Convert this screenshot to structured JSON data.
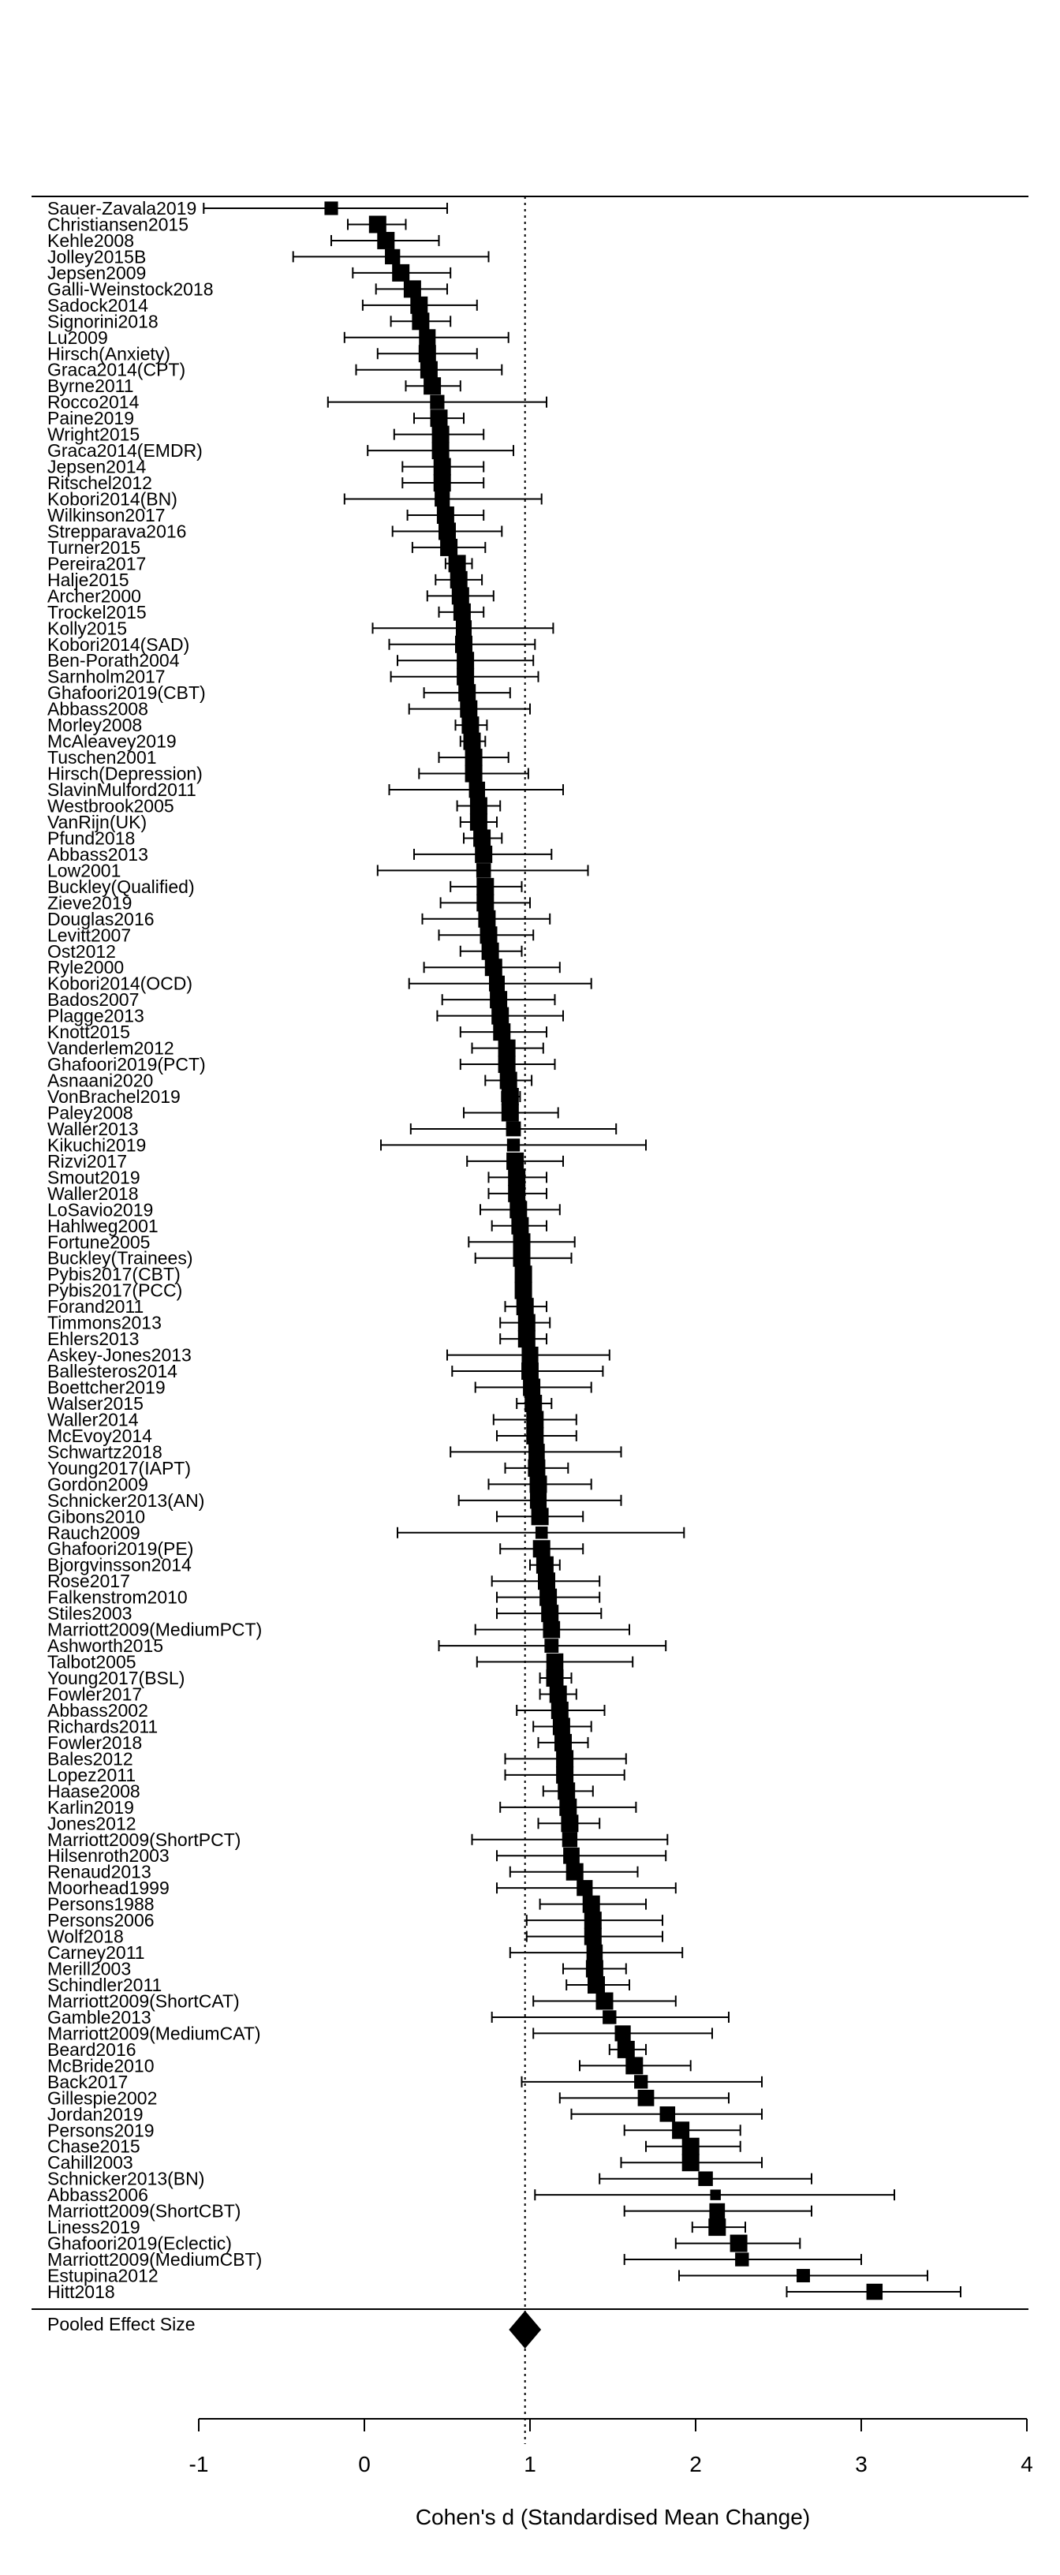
{
  "chart_data": {
    "type": "forest",
    "xlabel": "Cohen's d (Standardised Mean Change)",
    "xlim": [
      -1,
      4
    ],
    "xticks": [
      -1,
      0,
      1,
      2,
      3,
      4
    ],
    "reference_line": 0.97,
    "pooled": {
      "label": "Pooled Effect Size",
      "estimate": 0.97,
      "lower": 0.93,
      "upper": 1.01
    },
    "studies": [
      {
        "label": "Sauer-Zavala2019",
        "d": -0.2,
        "lo": -0.97,
        "hi": 0.5
      },
      {
        "label": "Christiansen2015",
        "d": 0.08,
        "lo": -0.1,
        "hi": 0.25
      },
      {
        "label": "Kehle2008",
        "d": 0.13,
        "lo": -0.2,
        "hi": 0.45
      },
      {
        "label": "Jolley2015B",
        "d": 0.17,
        "lo": -0.43,
        "hi": 0.75
      },
      {
        "label": "Jepsen2009",
        "d": 0.22,
        "lo": -0.07,
        "hi": 0.52
      },
      {
        "label": "Galli-Weinstock2018",
        "d": 0.29,
        "lo": 0.07,
        "hi": 0.5
      },
      {
        "label": "Sadock2014",
        "d": 0.33,
        "lo": -0.01,
        "hi": 0.68
      },
      {
        "label": "Signorini2018",
        "d": 0.34,
        "lo": 0.16,
        "hi": 0.52
      },
      {
        "label": "Lu2009",
        "d": 0.38,
        "lo": -0.12,
        "hi": 0.87
      },
      {
        "label": "Hirsch(Anxiety)",
        "d": 0.38,
        "lo": 0.08,
        "hi": 0.68
      },
      {
        "label": "Graca2014(CPT)",
        "d": 0.39,
        "lo": -0.05,
        "hi": 0.83
      },
      {
        "label": "Byrne2011",
        "d": 0.41,
        "lo": 0.25,
        "hi": 0.58
      },
      {
        "label": "Rocco2014",
        "d": 0.44,
        "lo": -0.22,
        "hi": 1.1
      },
      {
        "label": "Paine2019",
        "d": 0.45,
        "lo": 0.3,
        "hi": 0.6
      },
      {
        "label": "Wright2015",
        "d": 0.46,
        "lo": 0.18,
        "hi": 0.72
      },
      {
        "label": "Graca2014(EMDR)",
        "d": 0.46,
        "lo": 0.02,
        "hi": 0.9
      },
      {
        "label": "Jepsen2014",
        "d": 0.47,
        "lo": 0.23,
        "hi": 0.72
      },
      {
        "label": "Ritschel2012",
        "d": 0.47,
        "lo": 0.23,
        "hi": 0.72
      },
      {
        "label": "Kobori2014(BN)",
        "d": 0.47,
        "lo": -0.12,
        "hi": 1.07
      },
      {
        "label": "Wilkinson2017",
        "d": 0.49,
        "lo": 0.26,
        "hi": 0.72
      },
      {
        "label": "Strepparava2016",
        "d": 0.5,
        "lo": 0.17,
        "hi": 0.83
      },
      {
        "label": "Turner2015",
        "d": 0.51,
        "lo": 0.29,
        "hi": 0.73
      },
      {
        "label": "Pereira2017",
        "d": 0.56,
        "lo": 0.49,
        "hi": 0.65
      },
      {
        "label": "Halje2015",
        "d": 0.57,
        "lo": 0.43,
        "hi": 0.71
      },
      {
        "label": "Archer2000",
        "d": 0.58,
        "lo": 0.38,
        "hi": 0.78
      },
      {
        "label": "Trockel2015",
        "d": 0.59,
        "lo": 0.45,
        "hi": 0.72
      },
      {
        "label": "Kolly2015",
        "d": 0.6,
        "lo": 0.05,
        "hi": 1.14
      },
      {
        "label": "Kobori2014(SAD)",
        "d": 0.6,
        "lo": 0.15,
        "hi": 1.03
      },
      {
        "label": "Ben-Porath2004",
        "d": 0.61,
        "lo": 0.2,
        "hi": 1.02
      },
      {
        "label": "Sarnholm2017",
        "d": 0.61,
        "lo": 0.16,
        "hi": 1.05
      },
      {
        "label": "Ghafoori2019(CBT)",
        "d": 0.62,
        "lo": 0.36,
        "hi": 0.88
      },
      {
        "label": "Abbass2008",
        "d": 0.63,
        "lo": 0.27,
        "hi": 1.0
      },
      {
        "label": "Morley2008",
        "d": 0.64,
        "lo": 0.55,
        "hi": 0.74
      },
      {
        "label": "McAleavey2019",
        "d": 0.65,
        "lo": 0.58,
        "hi": 0.73
      },
      {
        "label": "Tuschen2001",
        "d": 0.66,
        "lo": 0.45,
        "hi": 0.87
      },
      {
        "label": "Hirsch(Depression)",
        "d": 0.66,
        "lo": 0.33,
        "hi": 0.99
      },
      {
        "label": "SlavinMulford2011",
        "d": 0.68,
        "lo": 0.15,
        "hi": 1.2
      },
      {
        "label": "Westbrook2005",
        "d": 0.69,
        "lo": 0.56,
        "hi": 0.82
      },
      {
        "label": "VanRijn(UK)",
        "d": 0.69,
        "lo": 0.58,
        "hi": 0.8
      },
      {
        "label": "Pfund2018",
        "d": 0.71,
        "lo": 0.6,
        "hi": 0.83
      },
      {
        "label": "Abbass2013",
        "d": 0.72,
        "lo": 0.3,
        "hi": 1.13
      },
      {
        "label": "Low2001",
        "d": 0.72,
        "lo": 0.08,
        "hi": 1.35
      },
      {
        "label": "Buckley(Qualified)",
        "d": 0.73,
        "lo": 0.52,
        "hi": 0.95
      },
      {
        "label": "Zieve2019",
        "d": 0.73,
        "lo": 0.46,
        "hi": 1.0
      },
      {
        "label": "Douglas2016",
        "d": 0.74,
        "lo": 0.35,
        "hi": 1.12
      },
      {
        "label": "Levitt2007",
        "d": 0.75,
        "lo": 0.45,
        "hi": 1.02
      },
      {
        "label": "Ost2012",
        "d": 0.76,
        "lo": 0.58,
        "hi": 0.95
      },
      {
        "label": "Ryle2000",
        "d": 0.78,
        "lo": 0.36,
        "hi": 1.18
      },
      {
        "label": "Kobori2014(OCD)",
        "d": 0.8,
        "lo": 0.27,
        "hi": 1.37
      },
      {
        "label": "Bados2007",
        "d": 0.81,
        "lo": 0.47,
        "hi": 1.15
      },
      {
        "label": "Plagge2013",
        "d": 0.82,
        "lo": 0.44,
        "hi": 1.2
      },
      {
        "label": "Knott2015",
        "d": 0.83,
        "lo": 0.58,
        "hi": 1.1
      },
      {
        "label": "Vanderlem2012",
        "d": 0.86,
        "lo": 0.65,
        "hi": 1.08
      },
      {
        "label": "Ghafoori2019(PCT)",
        "d": 0.86,
        "lo": 0.58,
        "hi": 1.15
      },
      {
        "label": "Asnaani2020",
        "d": 0.87,
        "lo": 0.73,
        "hi": 1.01
      },
      {
        "label": "VonBrachel2019",
        "d": 0.88,
        "lo": 0.83,
        "hi": 0.94
      },
      {
        "label": "Paley2008",
        "d": 0.88,
        "lo": 0.6,
        "hi": 1.17
      },
      {
        "label": "Waller2013",
        "d": 0.9,
        "lo": 0.28,
        "hi": 1.52
      },
      {
        "label": "Kikuchi2019",
        "d": 0.9,
        "lo": 0.1,
        "hi": 1.7
      },
      {
        "label": "Rizvi2017",
        "d": 0.91,
        "lo": 0.62,
        "hi": 1.2
      },
      {
        "label": "Smout2019",
        "d": 0.92,
        "lo": 0.75,
        "hi": 1.1
      },
      {
        "label": "Waller2018",
        "d": 0.92,
        "lo": 0.75,
        "hi": 1.1
      },
      {
        "label": "LoSavio2019",
        "d": 0.93,
        "lo": 0.7,
        "hi": 1.18
      },
      {
        "label": "Hahlweg2001",
        "d": 0.94,
        "lo": 0.77,
        "hi": 1.1
      },
      {
        "label": "Fortune2005",
        "d": 0.95,
        "lo": 0.63,
        "hi": 1.27
      },
      {
        "label": "Buckley(Trainees)",
        "d": 0.95,
        "lo": 0.67,
        "hi": 1.25
      },
      {
        "label": "Pybis2017(CBT)",
        "d": 0.96,
        "lo": 0.92,
        "hi": 1.0
      },
      {
        "label": "Pybis2017(PCC)",
        "d": 0.96,
        "lo": 0.93,
        "hi": 1.0
      },
      {
        "label": "Forand2011",
        "d": 0.97,
        "lo": 0.85,
        "hi": 1.1
      },
      {
        "label": "Timmons2013",
        "d": 0.98,
        "lo": 0.82,
        "hi": 1.12
      },
      {
        "label": "Ehlers2013",
        "d": 0.98,
        "lo": 0.82,
        "hi": 1.1
      },
      {
        "label": "Askey-Jones2013",
        "d": 1.0,
        "lo": 0.5,
        "hi": 1.48
      },
      {
        "label": "Ballesteros2014",
        "d": 1.0,
        "lo": 0.53,
        "hi": 1.44
      },
      {
        "label": "Boettcher2019",
        "d": 1.01,
        "lo": 0.67,
        "hi": 1.37
      },
      {
        "label": "Walser2015",
        "d": 1.02,
        "lo": 0.92,
        "hi": 1.13
      },
      {
        "label": "Waller2014",
        "d": 1.03,
        "lo": 0.78,
        "hi": 1.28
      },
      {
        "label": "McEvoy2014",
        "d": 1.03,
        "lo": 0.8,
        "hi": 1.28
      },
      {
        "label": "Schwartz2018",
        "d": 1.04,
        "lo": 0.52,
        "hi": 1.55
      },
      {
        "label": "Young2017(IAPT)",
        "d": 1.04,
        "lo": 0.85,
        "hi": 1.23
      },
      {
        "label": "Gordon2009",
        "d": 1.05,
        "lo": 0.75,
        "hi": 1.37
      },
      {
        "label": "Schnicker2013(AN)",
        "d": 1.05,
        "lo": 0.57,
        "hi": 1.55
      },
      {
        "label": "Gibons2010",
        "d": 1.06,
        "lo": 0.8,
        "hi": 1.32
      },
      {
        "label": "Rauch2009",
        "d": 1.07,
        "lo": 0.2,
        "hi": 1.93
      },
      {
        "label": "Ghafoori2019(PE)",
        "d": 1.07,
        "lo": 0.82,
        "hi": 1.32
      },
      {
        "label": "Bjorgvinsson2014",
        "d": 1.09,
        "lo": 1.0,
        "hi": 1.18
      },
      {
        "label": "Rose2017",
        "d": 1.1,
        "lo": 0.77,
        "hi": 1.42
      },
      {
        "label": "Falkenstrom2010",
        "d": 1.11,
        "lo": 0.8,
        "hi": 1.42
      },
      {
        "label": "Stiles2003",
        "d": 1.12,
        "lo": 0.8,
        "hi": 1.43
      },
      {
        "label": "Marriott2009(MediumPCT)",
        "d": 1.13,
        "lo": 0.67,
        "hi": 1.6
      },
      {
        "label": "Ashworth2015",
        "d": 1.13,
        "lo": 0.45,
        "hi": 1.82
      },
      {
        "label": "Talbot2005",
        "d": 1.15,
        "lo": 0.68,
        "hi": 1.62
      },
      {
        "label": "Young2017(BSL)",
        "d": 1.15,
        "lo": 1.06,
        "hi": 1.25
      },
      {
        "label": "Fowler2017",
        "d": 1.17,
        "lo": 1.06,
        "hi": 1.28
      },
      {
        "label": "Abbass2002",
        "d": 1.18,
        "lo": 0.92,
        "hi": 1.45
      },
      {
        "label": "Richards2011",
        "d": 1.19,
        "lo": 1.02,
        "hi": 1.37
      },
      {
        "label": "Fowler2018",
        "d": 1.2,
        "lo": 1.05,
        "hi": 1.35
      },
      {
        "label": "Bales2012",
        "d": 1.21,
        "lo": 0.85,
        "hi": 1.58
      },
      {
        "label": "Lopez2011",
        "d": 1.21,
        "lo": 0.85,
        "hi": 1.57
      },
      {
        "label": "Haase2008",
        "d": 1.22,
        "lo": 1.08,
        "hi": 1.38
      },
      {
        "label": "Karlin2019",
        "d": 1.23,
        "lo": 0.82,
        "hi": 1.64
      },
      {
        "label": "Jones2012",
        "d": 1.24,
        "lo": 1.05,
        "hi": 1.42
      },
      {
        "label": "Marriott2009(ShortPCT)",
        "d": 1.24,
        "lo": 0.65,
        "hi": 1.83
      },
      {
        "label": "Hilsenroth2003",
        "d": 1.25,
        "lo": 0.8,
        "hi": 1.82
      },
      {
        "label": "Renaud2013",
        "d": 1.27,
        "lo": 0.88,
        "hi": 1.65
      },
      {
        "label": "Moorhead1999",
        "d": 1.33,
        "lo": 0.8,
        "hi": 1.88
      },
      {
        "label": "Persons1988",
        "d": 1.37,
        "lo": 1.06,
        "hi": 1.7
      },
      {
        "label": "Persons2006",
        "d": 1.38,
        "lo": 0.98,
        "hi": 1.8
      },
      {
        "label": "Wolf2018",
        "d": 1.38,
        "lo": 0.98,
        "hi": 1.8
      },
      {
        "label": "Carney2011",
        "d": 1.39,
        "lo": 0.88,
        "hi": 1.92
      },
      {
        "label": "Merill2003",
        "d": 1.39,
        "lo": 1.2,
        "hi": 1.58
      },
      {
        "label": "Schindler2011",
        "d": 1.4,
        "lo": 1.22,
        "hi": 1.6
      },
      {
        "label": "Marriott2009(ShortCAT)",
        "d": 1.45,
        "lo": 1.02,
        "hi": 1.88
      },
      {
        "label": "Gamble2013",
        "d": 1.48,
        "lo": 0.77,
        "hi": 2.2
      },
      {
        "label": "Marriott2009(MediumCAT)",
        "d": 1.56,
        "lo": 1.02,
        "hi": 2.1
      },
      {
        "label": "Beard2016",
        "d": 1.58,
        "lo": 1.48,
        "hi": 1.7
      },
      {
        "label": "McBride2010",
        "d": 1.63,
        "lo": 1.3,
        "hi": 1.97
      },
      {
        "label": "Back2017",
        "d": 1.67,
        "lo": 0.95,
        "hi": 2.4
      },
      {
        "label": "Gillespie2002",
        "d": 1.7,
        "lo": 1.18,
        "hi": 2.2
      },
      {
        "label": "Jordan2019",
        "d": 1.83,
        "lo": 1.25,
        "hi": 2.4
      },
      {
        "label": "Persons2019",
        "d": 1.91,
        "lo": 1.57,
        "hi": 2.27
      },
      {
        "label": "Chase2015",
        "d": 1.97,
        "lo": 1.7,
        "hi": 2.27
      },
      {
        "label": "Cahill2003",
        "d": 1.97,
        "lo": 1.55,
        "hi": 2.4
      },
      {
        "label": "Schnicker2013(BN)",
        "d": 2.06,
        "lo": 1.42,
        "hi": 2.7
      },
      {
        "label": "Abbass2006",
        "d": 2.12,
        "lo": 1.03,
        "hi": 3.2
      },
      {
        "label": "Marriott2009(ShortCBT)",
        "d": 2.13,
        "lo": 1.57,
        "hi": 2.7
      },
      {
        "label": "Liness2019",
        "d": 2.13,
        "lo": 1.98,
        "hi": 2.3
      },
      {
        "label": "Ghafoori2019(Eclectic)",
        "d": 2.26,
        "lo": 1.88,
        "hi": 2.63
      },
      {
        "label": "Marriott2009(MediumCBT)",
        "d": 2.28,
        "lo": 1.57,
        "hi": 3.0
      },
      {
        "label": "Estupina2012",
        "d": 2.65,
        "lo": 1.9,
        "hi": 3.4
      },
      {
        "label": "Hitt2018",
        "d": 3.08,
        "lo": 2.55,
        "hi": 3.6
      }
    ]
  }
}
